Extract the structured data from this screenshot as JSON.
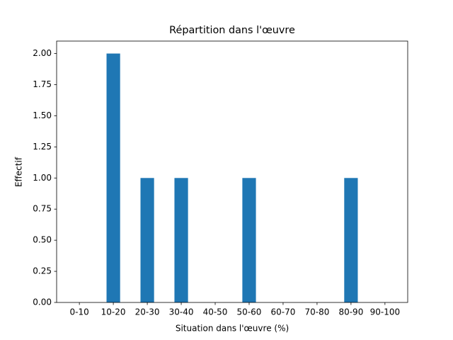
{
  "chart_data": {
    "type": "bar",
    "title": "Répartition dans l'œuvre",
    "x_label": "Situation dans l'œuvre (%)",
    "y_label": "Effectif",
    "categories": [
      "0-10",
      "10-20",
      "20-30",
      "30-40",
      "40-50",
      "50-60",
      "60-70",
      "70-80",
      "80-90",
      "90-100"
    ],
    "values": [
      0,
      2,
      1,
      1,
      0,
      1,
      0,
      0,
      1,
      0
    ],
    "color": "#1f77b4",
    "ylim": [
      0,
      2.1
    ],
    "yticks": [
      {
        "value": 0,
        "label": "0.00"
      },
      {
        "value": 0.25,
        "label": "0.25"
      },
      {
        "value": 0.5,
        "label": "0.50"
      },
      {
        "value": 0.75,
        "label": "0.75"
      },
      {
        "value": 1,
        "label": "1.00"
      },
      {
        "value": 1.25,
        "label": "1.25"
      },
      {
        "value": 1.5,
        "label": "1.50"
      },
      {
        "value": 1.75,
        "label": "1.75"
      },
      {
        "value": 2,
        "label": "2.00"
      }
    ]
  }
}
